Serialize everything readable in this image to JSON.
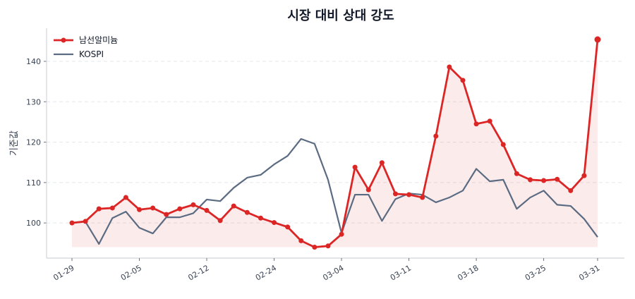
{
  "chart_data": {
    "type": "line",
    "title": "시장 대비 상대 강도",
    "xlabel": "",
    "ylabel": "기준값",
    "ylim": [
      91.3,
      148.2
    ],
    "yticks": [
      100,
      110,
      120,
      130,
      140
    ],
    "xticks": [
      {
        "index": 0,
        "label": "01-29"
      },
      {
        "index": 5,
        "label": "02-05"
      },
      {
        "index": 10,
        "label": "02-12"
      },
      {
        "index": 15,
        "label": "02-24"
      },
      {
        "index": 20,
        "label": "03-04"
      },
      {
        "index": 25,
        "label": "03-11"
      },
      {
        "index": 30,
        "label": "03-18"
      },
      {
        "index": 35,
        "label": "03-25"
      },
      {
        "index": 39,
        "label": "03-31"
      }
    ],
    "grid": "horizontal-dashed",
    "legend": "top-left",
    "series": [
      {
        "name": "남선알미늄",
        "color": "#dc2626",
        "markers": true,
        "fill": true,
        "values": [
          100.0,
          100.4,
          103.5,
          103.7,
          106.3,
          103.3,
          103.7,
          102.1,
          103.5,
          104.5,
          103.1,
          100.6,
          104.2,
          102.6,
          101.2,
          100.1,
          99.0,
          95.6,
          94.0,
          94.3,
          97.2,
          113.8,
          108.2,
          114.9,
          107.2,
          107.0,
          106.3,
          121.5,
          138.6,
          135.3,
          124.5,
          125.2,
          119.4,
          112.2,
          110.7,
          110.5,
          110.8,
          108.0,
          111.7,
          145.4
        ]
      },
      {
        "name": "KOSPI",
        "color": "#5b6b82",
        "markers": false,
        "fill": false,
        "values": [
          100.0,
          100.3,
          94.8,
          101.2,
          102.8,
          98.8,
          97.4,
          101.4,
          101.4,
          102.4,
          105.8,
          105.4,
          108.7,
          111.2,
          111.9,
          114.5,
          116.6,
          120.8,
          119.6,
          110.7,
          97.5,
          107.0,
          107.0,
          100.5,
          105.9,
          107.3,
          107.0,
          105.1,
          106.3,
          108.0,
          113.4,
          110.3,
          110.7,
          103.5,
          106.3,
          108.0,
          104.5,
          104.2,
          101.0,
          96.5
        ]
      }
    ]
  }
}
